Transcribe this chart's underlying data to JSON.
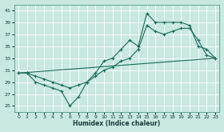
{
  "bg_color": "#c8e8e0",
  "grid_color": "#b0d8d0",
  "line_color": "#1a6b5a",
  "xlabel": "Humidex (Indice chaleur)",
  "xlim": [
    -0.5,
    23.5
  ],
  "ylim": [
    24,
    42
  ],
  "xticks": [
    0,
    1,
    2,
    3,
    4,
    5,
    6,
    7,
    8,
    9,
    10,
    11,
    12,
    13,
    14,
    15,
    16,
    17,
    18,
    19,
    20,
    21,
    22,
    23
  ],
  "yticks": [
    25,
    27,
    29,
    31,
    33,
    35,
    37,
    39,
    41
  ],
  "line1_x": [
    0,
    1,
    2,
    3,
    4,
    5,
    6,
    7,
    8,
    9,
    10,
    11,
    12,
    13,
    14,
    15,
    16,
    17,
    18,
    19,
    20,
    21,
    22,
    23
  ],
  "line1_y": [
    30.5,
    30.5,
    29.0,
    28.5,
    28.0,
    27.5,
    25.0,
    26.5,
    29.0,
    30.5,
    32.5,
    33.0,
    34.5,
    36.0,
    35.0,
    40.5,
    39.0,
    39.0,
    39.0,
    39.0,
    38.5,
    35.0,
    34.5,
    33.0
  ],
  "line2_x": [
    0,
    1,
    2,
    3,
    4,
    5,
    6,
    7,
    8,
    9,
    10,
    11,
    12,
    13,
    14,
    15,
    16,
    17,
    18,
    19,
    20,
    21,
    22,
    23
  ],
  "line2_y": [
    30.5,
    30.5,
    30.0,
    29.5,
    29.0,
    28.5,
    28.0,
    28.5,
    29.0,
    30.0,
    31.0,
    31.5,
    32.5,
    33.0,
    34.5,
    38.5,
    37.5,
    37.0,
    37.5,
    38.0,
    38.0,
    36.0,
    33.5,
    33.0
  ],
  "line3_x": [
    0,
    23
  ],
  "line3_y": [
    30.5,
    33.0
  ]
}
